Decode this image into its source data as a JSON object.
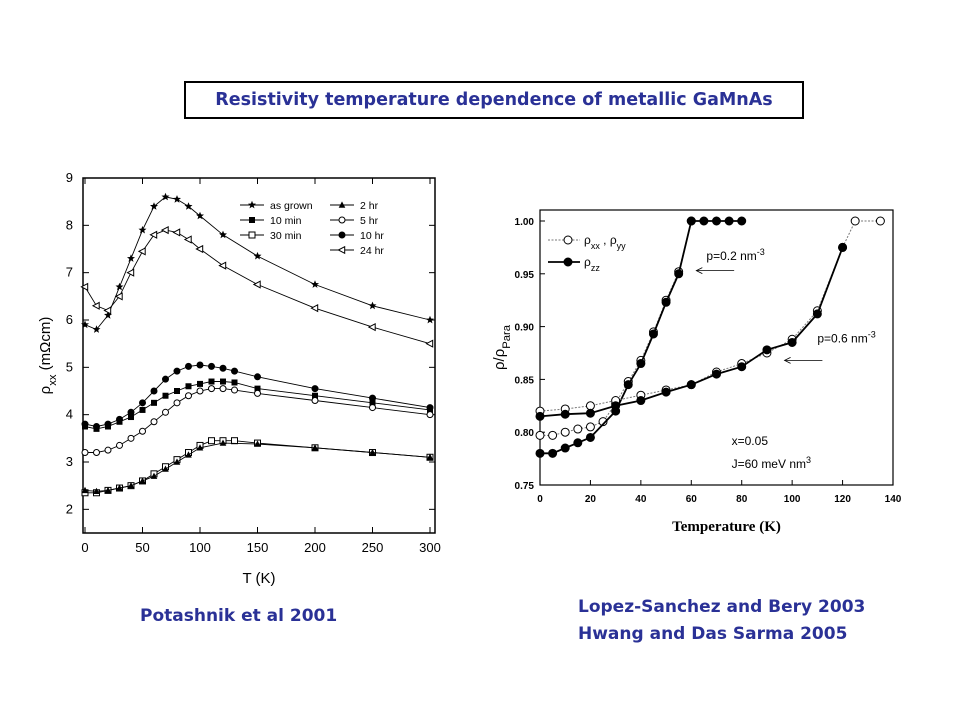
{
  "title": "Resistivity temperature dependence of metallic GaMnAs",
  "captions": {
    "left": "Potashnik et al 2001",
    "right_line1": "Lopez-Sanchez and Bery 2003",
    "right_line2": "Hwang and Das Sarma 2005"
  },
  "chart_data": [
    {
      "type": "line",
      "xlabel": "T (K)",
      "ylabel_main": "ρ",
      "ylabel_sub": "xx",
      "ylabel_unit": " (mΩcm)",
      "xlim": [
        0,
        300
      ],
      "ylim": [
        1.5,
        9
      ],
      "xticks": [
        "0",
        "50",
        "100",
        "150",
        "200",
        "250",
        "300"
      ],
      "yticks": [
        "2",
        "3",
        "4",
        "5",
        "6",
        "7",
        "8",
        "9"
      ],
      "legend": "top-right",
      "series": [
        {
          "name": "as grown",
          "marker": "star",
          "x": [
            0,
            10,
            20,
            30,
            40,
            50,
            60,
            70,
            80,
            90,
            100,
            120,
            150,
            200,
            250,
            300
          ],
          "y": [
            5.9,
            5.8,
            6.1,
            6.7,
            7.3,
            7.9,
            8.4,
            8.6,
            8.55,
            8.4,
            8.2,
            7.8,
            7.35,
            6.75,
            6.3,
            6.0
          ]
        },
        {
          "name": "10 min",
          "marker": "square-filled",
          "x": [
            0,
            10,
            20,
            30,
            40,
            50,
            60,
            70,
            80,
            90,
            100,
            110,
            120,
            130,
            150,
            200,
            250,
            300
          ],
          "y": [
            3.75,
            3.7,
            3.75,
            3.85,
            3.95,
            4.1,
            4.25,
            4.4,
            4.5,
            4.6,
            4.65,
            4.7,
            4.7,
            4.68,
            4.55,
            4.4,
            4.25,
            4.1
          ]
        },
        {
          "name": "30 min",
          "marker": "square-open",
          "x": [
            0,
            10,
            20,
            30,
            40,
            50,
            60,
            70,
            80,
            90,
            100,
            110,
            120,
            130,
            150,
            200,
            250,
            300
          ],
          "y": [
            2.35,
            2.35,
            2.4,
            2.45,
            2.5,
            2.6,
            2.75,
            2.9,
            3.05,
            3.2,
            3.35,
            3.45,
            3.45,
            3.45,
            3.4,
            3.3,
            3.2,
            3.1
          ]
        },
        {
          "name": "2 hr",
          "marker": "triangle-up-filled",
          "x": [
            0,
            10,
            20,
            30,
            40,
            50,
            60,
            70,
            80,
            90,
            100,
            120,
            150,
            200,
            250,
            300
          ],
          "y": [
            2.4,
            2.38,
            2.4,
            2.45,
            2.5,
            2.6,
            2.7,
            2.85,
            3.0,
            3.15,
            3.3,
            3.4,
            3.38,
            3.3,
            3.2,
            3.1
          ]
        },
        {
          "name": "5 hr",
          "marker": "circle-open",
          "x": [
            0,
            10,
            20,
            30,
            40,
            50,
            60,
            70,
            80,
            90,
            100,
            110,
            120,
            130,
            150,
            200,
            250,
            300
          ],
          "y": [
            3.2,
            3.2,
            3.25,
            3.35,
            3.5,
            3.65,
            3.85,
            4.05,
            4.25,
            4.4,
            4.5,
            4.55,
            4.55,
            4.52,
            4.45,
            4.3,
            4.15,
            4.0
          ]
        },
        {
          "name": "10 hr",
          "marker": "circle-filled",
          "x": [
            0,
            10,
            20,
            30,
            40,
            50,
            60,
            70,
            80,
            90,
            100,
            110,
            120,
            130,
            150,
            200,
            250,
            300
          ],
          "y": [
            3.8,
            3.75,
            3.8,
            3.9,
            4.05,
            4.25,
            4.5,
            4.75,
            4.92,
            5.02,
            5.05,
            5.02,
            4.98,
            4.92,
            4.8,
            4.55,
            4.35,
            4.15
          ]
        },
        {
          "name": "24 hr",
          "marker": "triangle-left-open",
          "x": [
            0,
            10,
            20,
            30,
            40,
            50,
            60,
            70,
            80,
            90,
            100,
            120,
            150,
            200,
            250,
            300
          ],
          "y": [
            6.7,
            6.3,
            6.2,
            6.5,
            7.0,
            7.45,
            7.8,
            7.9,
            7.85,
            7.7,
            7.5,
            7.15,
            6.75,
            6.25,
            5.85,
            5.5
          ]
        }
      ]
    },
    {
      "type": "line",
      "xlabel": "Temperature (K)",
      "ylabel_main": "ρ/ρ",
      "ylabel_sub": "Para",
      "xlim": [
        0,
        140
      ],
      "ylim": [
        0.75,
        1.01
      ],
      "xticks": [
        "0",
        "20",
        "40",
        "60",
        "80",
        "100",
        "120",
        "140"
      ],
      "yticks": [
        "0.75",
        "0.80",
        "0.85",
        "0.90",
        "0.95",
        "1.00"
      ],
      "legend": "top-left",
      "legend_entries": [
        {
          "main": "ρ",
          "sub": "xx",
          "mid": " , ρ",
          "sub2": "yy",
          "marker": "circle-open"
        },
        {
          "main": "ρ",
          "sub": "zz",
          "mid": "",
          "sub2": "",
          "marker": "circle-filled"
        }
      ],
      "annotations": [
        {
          "text": "p=0.2 nm",
          "sup": "-3",
          "x": 66,
          "y": 0.963
        },
        {
          "text": "p=0.6 nm",
          "sup": "-3",
          "x": 110,
          "y": 0.885
        },
        {
          "text": "x=0.05",
          "sup": "",
          "x": 76,
          "y": 0.788
        },
        {
          "text": "J=60 meV nm",
          "sup": "3",
          "x": 76,
          "y": 0.766
        }
      ],
      "series": [
        {
          "name": "ρxx p=0.2",
          "marker": "circle-open",
          "x": [
            0,
            5,
            10,
            15,
            20,
            25,
            30,
            35,
            40,
            45,
            50,
            55,
            60
          ],
          "y": [
            0.797,
            0.797,
            0.8,
            0.803,
            0.805,
            0.81,
            0.827,
            0.848,
            0.868,
            0.895,
            0.925,
            0.952,
            1.0
          ]
        },
        {
          "name": "ρzz p=0.2",
          "marker": "circle-filled",
          "x": [
            0,
            5,
            10,
            15,
            20,
            30,
            35,
            40,
            45,
            50,
            55,
            60,
            65,
            70,
            75,
            80
          ],
          "y": [
            0.78,
            0.78,
            0.785,
            0.79,
            0.795,
            0.82,
            0.845,
            0.865,
            0.893,
            0.923,
            0.95,
            1.0,
            1.0,
            1.0,
            1.0,
            1.0
          ]
        },
        {
          "name": "ρxx p=0.6",
          "marker": "circle-open",
          "x": [
            0,
            10,
            20,
            30,
            40,
            50,
            60,
            70,
            80,
            90,
            100,
            110,
            120,
            125,
            135
          ],
          "y": [
            0.82,
            0.822,
            0.825,
            0.83,
            0.835,
            0.84,
            0.845,
            0.857,
            0.865,
            0.875,
            0.888,
            0.915,
            0.975,
            1.0,
            1.0
          ]
        },
        {
          "name": "ρzz p=0.6",
          "marker": "circle-filled",
          "x": [
            0,
            10,
            20,
            30,
            40,
            50,
            60,
            70,
            80,
            90,
            100,
            110,
            120
          ],
          "y": [
            0.815,
            0.817,
            0.818,
            0.825,
            0.83,
            0.838,
            0.845,
            0.855,
            0.862,
            0.878,
            0.885,
            0.912,
            0.975
          ]
        }
      ]
    }
  ]
}
